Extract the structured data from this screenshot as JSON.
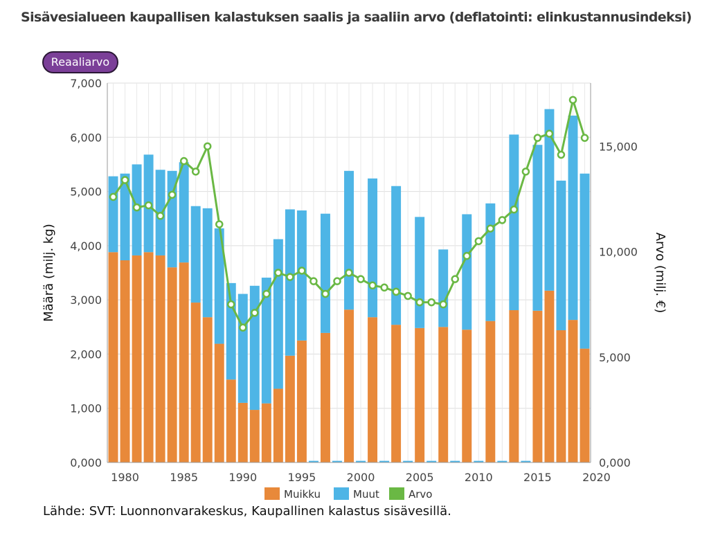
{
  "title": "Sisävesialueen kaupallisen kalastuksen saalis ja saaliin arvo (deflatointi: elinkustannusindeksi)",
  "toggle_button": "Reaaliarvo",
  "source": "Lähde: SVT: Luonnonvarakeskus, Kaupallinen kalastus sisävesillä.",
  "colors": {
    "muikku": "#e8893a",
    "muut": "#4eb5e6",
    "arvo": "#6ab844",
    "button": "#7b3f98"
  },
  "chart_data": {
    "type": "bar",
    "stacked": true,
    "x": [
      1979,
      1980,
      1981,
      1982,
      1983,
      1984,
      1985,
      1986,
      1987,
      1988,
      1989,
      1990,
      1991,
      1992,
      1993,
      1994,
      1995,
      1996,
      1997,
      1998,
      1999,
      2000,
      2001,
      2002,
      2003,
      2004,
      2005,
      2006,
      2007,
      2008,
      2009,
      2010,
      2011,
      2012,
      2013,
      2014,
      2015,
      2016,
      2017,
      2018,
      2019
    ],
    "series": [
      {
        "name": "Muikku",
        "axis": "left",
        "kind": "bar",
        "values": [
          3880,
          3730,
          3820,
          3880,
          3820,
          3600,
          3690,
          2950,
          2680,
          2190,
          1530,
          1100,
          970,
          1090,
          1360,
          1970,
          2250,
          0,
          2390,
          0,
          2820,
          0,
          2680,
          0,
          2540,
          0,
          2480,
          0,
          2500,
          0,
          2450,
          0,
          2610,
          0,
          2810,
          0,
          2800,
          3170,
          2440,
          2630,
          2100
        ]
      },
      {
        "name": "Muut",
        "axis": "left",
        "kind": "bar",
        "values": [
          1400,
          1600,
          1680,
          1800,
          1580,
          1780,
          1850,
          1780,
          2010,
          2130,
          1780,
          2010,
          2290,
          2320,
          2760,
          2700,
          2400,
          30,
          2200,
          30,
          2560,
          30,
          2560,
          30,
          2560,
          30,
          2050,
          30,
          1430,
          30,
          2130,
          30,
          2170,
          30,
          3240,
          30,
          3060,
          3350,
          2760,
          3770,
          3230
        ]
      },
      {
        "name": "Arvo",
        "axis": "right",
        "kind": "line",
        "values": [
          12600,
          13400,
          12100,
          12200,
          11700,
          12700,
          14300,
          13800,
          15000,
          11300,
          7500,
          6400,
          7100,
          8000,
          9000,
          8800,
          9100,
          8600,
          8000,
          8600,
          9000,
          8700,
          8400,
          8300,
          8100,
          7900,
          7600,
          7600,
          7500,
          8700,
          9800,
          10500,
          11100,
          11500,
          12000,
          13800,
          15400,
          15600,
          14600,
          17200,
          15400
        ]
      }
    ],
    "x_ticks": [
      1980,
      1985,
      1990,
      1995,
      2000,
      2005,
      2010,
      2015,
      2020
    ],
    "xlim": [
      1978.5,
      2019.5
    ],
    "ylabel": "Määrä (milj. kg)",
    "ylim": [
      0,
      7000
    ],
    "y_ticks": [
      "0,000",
      "1,000",
      "2,000",
      "3,000",
      "4,000",
      "5,000",
      "6,000",
      "7,000"
    ],
    "y2label": "Arvo (milj. €)",
    "y2lim": [
      0,
      18000
    ],
    "y2_ticks": [
      "0,000",
      "5,000",
      "10,000",
      "15,000"
    ],
    "legend": [
      "Muikku",
      "Muut",
      "Arvo"
    ],
    "legend_position": "bottom",
    "grid": true
  }
}
